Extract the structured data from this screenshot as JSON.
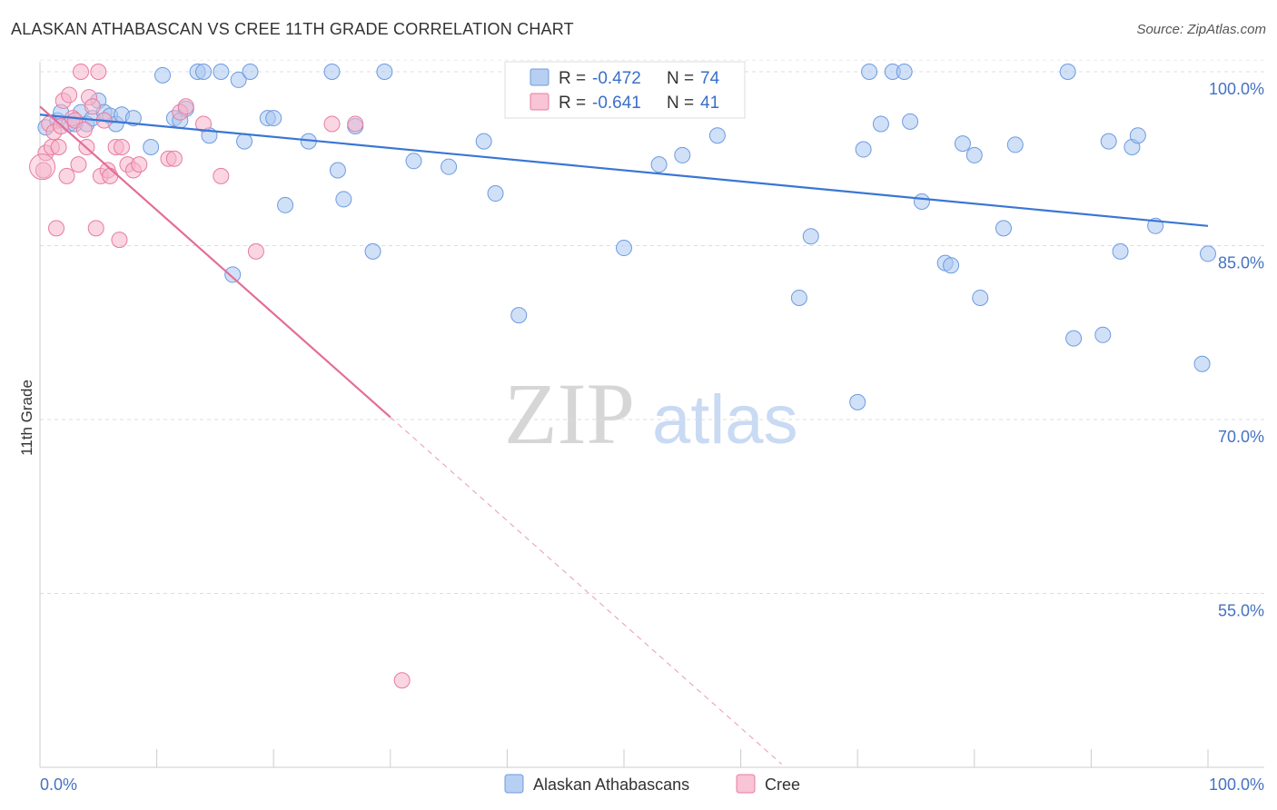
{
  "title": "ALASKAN ATHABASCAN VS CREE 11TH GRADE CORRELATION CHART",
  "source": "Source: ZipAtlas.com",
  "watermark": {
    "zip": "ZIP",
    "atlas": "atlas"
  },
  "chart_data": {
    "type": "scatter",
    "ylabel": "11th Grade",
    "xlim": [
      0,
      100
    ],
    "ylim": [
      40,
      101
    ],
    "x_tick_labels": [
      "0.0%",
      "100.0%"
    ],
    "y_ticks": [
      55,
      70,
      85,
      100
    ],
    "y_tick_labels": [
      "55.0%",
      "70.0%",
      "85.0%",
      "100.0%"
    ],
    "grid": "horizontal dashed",
    "legend_position": "top-center",
    "legend": {
      "r_label": "R =",
      "n_label": "N =",
      "rows": [
        {
          "r": "-0.472",
          "n": "74"
        },
        {
          "r": "-0.641",
          "n": "41"
        }
      ]
    },
    "series": [
      {
        "name": "Alaskan Athabascans",
        "color": "#6d9be0",
        "fill": "#a9c6f0",
        "trend": {
          "x0": 0,
          "y0": 96.3,
          "x1": 100,
          "y1": 86.7
        },
        "points": [
          [
            0.5,
            95.2
          ],
          [
            1.5,
            95.8
          ],
          [
            1.8,
            96.5
          ],
          [
            2.5,
            95.5
          ],
          [
            3.0,
            95.5
          ],
          [
            3.5,
            96.5
          ],
          [
            4.0,
            95.5
          ],
          [
            4.5,
            96.0
          ],
          [
            5.0,
            97.5
          ],
          [
            5.5,
            96.5
          ],
          [
            6.0,
            96.2
          ],
          [
            6.5,
            95.5
          ],
          [
            7.0,
            96.3
          ],
          [
            8.0,
            96.0
          ],
          [
            9.5,
            93.5
          ],
          [
            10.5,
            99.7
          ],
          [
            11.5,
            96.0
          ],
          [
            12.0,
            95.8
          ],
          [
            12.5,
            96.8
          ],
          [
            13.5,
            100.0
          ],
          [
            14.0,
            100.0
          ],
          [
            14.5,
            94.5
          ],
          [
            15.5,
            100.0
          ],
          [
            16.5,
            82.5
          ],
          [
            17.0,
            99.3
          ],
          [
            17.5,
            94.0
          ],
          [
            18.0,
            100.0
          ],
          [
            19.5,
            96.0
          ],
          [
            20.0,
            96.0
          ],
          [
            21.0,
            88.5
          ],
          [
            23.0,
            94.0
          ],
          [
            25.0,
            100.0
          ],
          [
            25.5,
            91.5
          ],
          [
            26.0,
            89.0
          ],
          [
            27.0,
            95.3
          ],
          [
            28.5,
            84.5
          ],
          [
            29.5,
            100.0
          ],
          [
            32.0,
            92.3
          ],
          [
            35.0,
            91.8
          ],
          [
            38.0,
            94.0
          ],
          [
            39.0,
            89.5
          ],
          [
            41.0,
            79.0
          ],
          [
            50.0,
            84.8
          ],
          [
            53.0,
            92.0
          ],
          [
            55.0,
            92.8
          ],
          [
            58.0,
            94.5
          ],
          [
            59.0,
            98.0
          ],
          [
            65.0,
            80.5
          ],
          [
            66.0,
            85.8
          ],
          [
            70.0,
            71.5
          ],
          [
            70.5,
            93.3
          ],
          [
            71.0,
            100.0
          ],
          [
            72.0,
            95.5
          ],
          [
            73.0,
            100.0
          ],
          [
            74.0,
            100.0
          ],
          [
            74.5,
            95.7
          ],
          [
            75.5,
            88.8
          ],
          [
            77.5,
            83.5
          ],
          [
            78.0,
            83.3
          ],
          [
            79.0,
            93.8
          ],
          [
            80.0,
            92.8
          ],
          [
            80.5,
            80.5
          ],
          [
            82.5,
            86.5
          ],
          [
            83.5,
            93.7
          ],
          [
            88.0,
            100.0
          ],
          [
            88.5,
            77.0
          ],
          [
            91.0,
            77.3
          ],
          [
            91.5,
            94.0
          ],
          [
            92.5,
            84.5
          ],
          [
            93.5,
            93.5
          ],
          [
            94.0,
            94.5
          ],
          [
            95.5,
            86.7
          ],
          [
            99.5,
            74.8
          ],
          [
            100.0,
            84.3
          ]
        ]
      },
      {
        "name": "Cree",
        "color": "#e87ba0",
        "fill": "#f5b5cb",
        "trend": {
          "x0": 0,
          "y0": 97.0,
          "x1": 30,
          "y1": 70.2,
          "dash_x1": 63.5
        },
        "points": [
          [
            0.3,
            91.5
          ],
          [
            0.5,
            93.0
          ],
          [
            0.8,
            95.5
          ],
          [
            1.0,
            93.5
          ],
          [
            1.2,
            94.8
          ],
          [
            1.4,
            86.5
          ],
          [
            1.6,
            93.5
          ],
          [
            1.8,
            95.3
          ],
          [
            2.0,
            97.5
          ],
          [
            2.3,
            91.0
          ],
          [
            2.5,
            98.0
          ],
          [
            2.8,
            96.0
          ],
          [
            3.0,
            95.8
          ],
          [
            3.3,
            92.0
          ],
          [
            3.5,
            100.0
          ],
          [
            3.8,
            95.0
          ],
          [
            4.0,
            93.5
          ],
          [
            4.2,
            97.8
          ],
          [
            4.5,
            97.0
          ],
          [
            4.8,
            86.5
          ],
          [
            5.0,
            100.0
          ],
          [
            5.2,
            91.0
          ],
          [
            5.5,
            95.8
          ],
          [
            5.8,
            91.5
          ],
          [
            6.0,
            91.0
          ],
          [
            6.5,
            93.5
          ],
          [
            6.8,
            85.5
          ],
          [
            7.0,
            93.5
          ],
          [
            7.5,
            92.0
          ],
          [
            8.0,
            91.5
          ],
          [
            8.5,
            92.0
          ],
          [
            11.0,
            92.5
          ],
          [
            11.5,
            92.5
          ],
          [
            12.0,
            96.5
          ],
          [
            12.5,
            97.0
          ],
          [
            14.0,
            95.5
          ],
          [
            15.5,
            91.0
          ],
          [
            18.5,
            84.5
          ],
          [
            25.0,
            95.5
          ],
          [
            27.0,
            95.5
          ],
          [
            31.0,
            47.5
          ]
        ]
      }
    ]
  }
}
